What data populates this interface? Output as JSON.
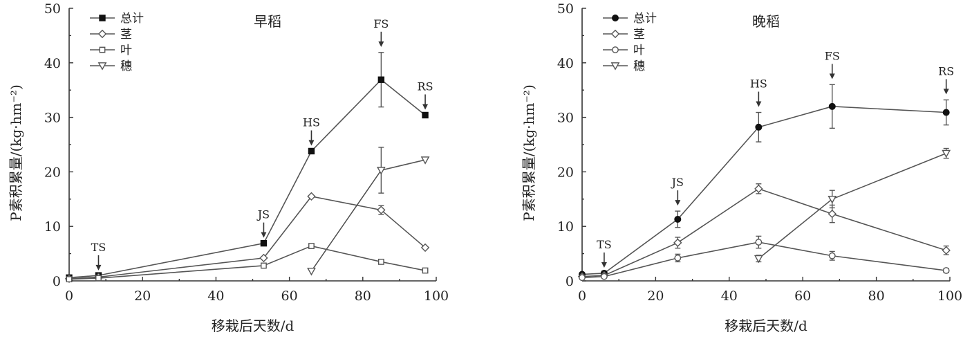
{
  "chart_data": [
    {
      "type": "line",
      "title": "早稻",
      "xlabel": "移栽后天数/d",
      "ylabel": "P素积累量/(kg·hm⁻²)",
      "xlim": [
        0,
        100
      ],
      "ylim": [
        0,
        50
      ],
      "xticks": [
        "0",
        "20",
        "40",
        "60",
        "80",
        "100"
      ],
      "yticks": [
        "0",
        "10",
        "20",
        "30",
        "40",
        "50"
      ],
      "legend_position": "top-left",
      "series": [
        {
          "name": "总计",
          "marker": "filled-square",
          "x": [
            0,
            8,
            53,
            66,
            85,
            97
          ],
          "y": [
            0.6,
            1.0,
            6.9,
            23.8,
            36.9,
            30.4
          ],
          "err": [
            0,
            0,
            0,
            0,
            5.0,
            0
          ]
        },
        {
          "name": "茎",
          "marker": "diamond",
          "x": [
            0,
            8,
            53,
            66,
            85,
            97
          ],
          "y": [
            0.4,
            0.7,
            4.2,
            15.5,
            13.0,
            6.1
          ],
          "err": [
            0,
            0,
            0,
            0,
            0.8,
            0
          ]
        },
        {
          "name": "叶",
          "marker": "open-square",
          "x": [
            0,
            8,
            53,
            66,
            85,
            97
          ],
          "y": [
            0.3,
            0.5,
            2.8,
            6.4,
            3.5,
            1.9
          ],
          "err": [
            0,
            0,
            0,
            0,
            0,
            0
          ]
        },
        {
          "name": "穗",
          "marker": "open-triangle-down",
          "x": [
            66,
            85,
            97
          ],
          "y": [
            1.8,
            20.3,
            22.2
          ],
          "err": [
            0,
            4.2,
            0
          ]
        }
      ],
      "annotations": [
        {
          "text": "TS",
          "x": 8,
          "y": 0.9
        },
        {
          "text": "JS",
          "x": 53,
          "y": 6.9
        },
        {
          "text": "HS",
          "x": 66,
          "y": 23.8
        },
        {
          "text": "FS",
          "x": 85,
          "y": 41.9
        },
        {
          "text": "RS",
          "x": 97,
          "y": 30.4
        }
      ]
    },
    {
      "type": "line",
      "title": "晚稻",
      "xlabel": "移栽后天数/d",
      "ylabel": "P素积累量/(kg·hm⁻²)",
      "xlim": [
        0,
        100
      ],
      "ylim": [
        0,
        50
      ],
      "xticks": [
        "0",
        "20",
        "40",
        "60",
        "80",
        "100"
      ],
      "yticks": [
        "0",
        "10",
        "20",
        "30",
        "40",
        "50"
      ],
      "legend_position": "top-left",
      "series": [
        {
          "name": "总计",
          "marker": "filled-circle",
          "x": [
            0,
            6,
            26,
            48,
            68,
            99
          ],
          "y": [
            1.2,
            1.4,
            11.3,
            28.2,
            32.0,
            30.9
          ],
          "err": [
            0,
            0.4,
            1.5,
            2.7,
            4.0,
            2.3
          ]
        },
        {
          "name": "茎",
          "marker": "diamond",
          "x": [
            0,
            6,
            26,
            48,
            68,
            99
          ],
          "y": [
            0.8,
            1.0,
            7.0,
            16.9,
            12.3,
            5.6
          ],
          "err": [
            0,
            0,
            1.0,
            0.9,
            1.6,
            0.8
          ]
        },
        {
          "name": "叶",
          "marker": "open-circle",
          "x": [
            0,
            6,
            26,
            48,
            68,
            99
          ],
          "y": [
            0.6,
            0.8,
            4.2,
            7.1,
            4.6,
            1.9
          ],
          "err": [
            0,
            0,
            0.7,
            1.1,
            0.8,
            0.4
          ]
        },
        {
          "name": "穗",
          "marker": "open-triangle-down",
          "x": [
            48,
            68,
            99
          ],
          "y": [
            4.1,
            15.0,
            23.4
          ],
          "err": [
            0.6,
            1.6,
            0.9
          ]
        }
      ],
      "annotations": [
        {
          "text": "TS",
          "x": 6,
          "y": 1.4
        },
        {
          "text": "JS",
          "x": 26,
          "y": 12.8
        },
        {
          "text": "HS",
          "x": 48,
          "y": 30.9
        },
        {
          "text": "FS",
          "x": 68,
          "y": 36.0
        },
        {
          "text": "RS",
          "x": 99,
          "y": 33.2
        }
      ]
    }
  ],
  "colors": {
    "axis": "#333333",
    "series": "#555555",
    "marker_fill": "#111111",
    "open_marker_fill": "#ffffff"
  }
}
